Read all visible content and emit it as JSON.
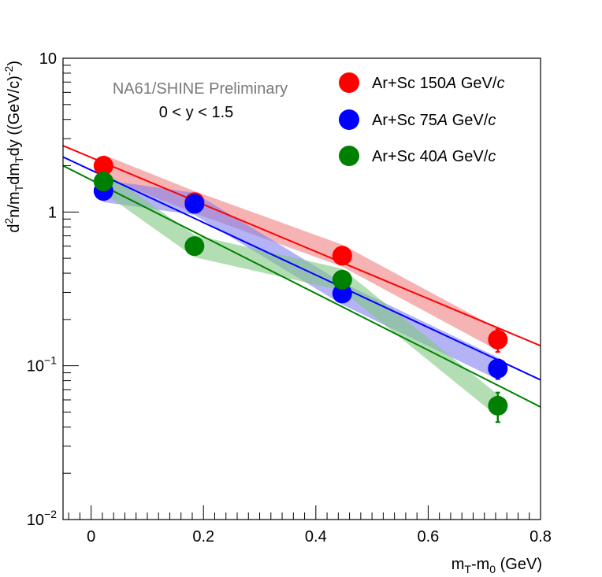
{
  "chart_data": {
    "type": "scatter",
    "xlabel_main": "m",
    "xlabel_sub1": "T",
    "xlabel_mid": "-m",
    "xlabel_sub2": "0",
    "xlabel_tail": " (GeV)",
    "ylabel_parts": {
      "a": "d",
      "a_sup": "2",
      "b": "n/m",
      "b_sub": "T",
      "c": "dm",
      "c_sub": "T",
      "d": "dy ((GeV/c)",
      "d_sup": "-2",
      "e": ")"
    },
    "x_range": [
      -0.05,
      0.8
    ],
    "y_range": [
      0.01,
      10
    ],
    "y_scale": "log",
    "x_ticks": [
      0,
      0.2,
      0.4,
      0.6,
      0.8
    ],
    "x_tick_labels": [
      "0",
      "0.2",
      "0.4",
      "0.6",
      "0.8"
    ],
    "y_major_ticks": [
      {
        "value": 0.01,
        "base": "10",
        "exp": "−2"
      },
      {
        "value": 0.1,
        "base": "10",
        "exp": "−1"
      },
      {
        "value": 1,
        "base": "1",
        "exp": ""
      },
      {
        "value": 10,
        "base": "10",
        "exp": ""
      }
    ],
    "annotations": [
      "NA61/SHINE Preliminary",
      "0 < y < 1.5"
    ],
    "legend_position": "top-right",
    "series": [
      {
        "name_prefix": "Ar+Sc 150",
        "name_italic": "A",
        "name_mid": " GeV/",
        "name_italic2": "c",
        "color": "#ff0000",
        "band_color": "#f08080",
        "x": [
          0.022,
          0.184,
          0.447,
          0.724
        ],
        "y": [
          2.0,
          1.16,
          0.52,
          0.148
        ],
        "yerr_low": [
          0.15,
          0.07,
          0.03,
          0.025
        ],
        "yerr_high": [
          0.15,
          0.07,
          0.03,
          0.025
        ],
        "band_half_width_factor": 1.18,
        "fit": {
          "x0": -0.05,
          "y0": 2.7,
          "x1": 0.8,
          "y1": 0.135
        }
      },
      {
        "name_prefix": "Ar+Sc 75",
        "name_italic": "A",
        "name_mid": " GeV/",
        "name_italic2": "c",
        "color": "#0000ff",
        "band_color": "#8080f0",
        "x": [
          0.022,
          0.184,
          0.447,
          0.724
        ],
        "y": [
          1.37,
          1.13,
          0.295,
          0.096
        ],
        "yerr_low": [
          0.12,
          0.06,
          0.02,
          0.014
        ],
        "yerr_high": [
          0.12,
          0.06,
          0.02,
          0.014
        ],
        "band_half_width_factor": 1.18,
        "fit": {
          "x0": -0.05,
          "y0": 2.28,
          "x1": 0.8,
          "y1": 0.081
        }
      },
      {
        "name_prefix": "Ar+Sc 40",
        "name_italic": "A",
        "name_mid": " GeV/",
        "name_italic2": "c",
        "color": "#008000",
        "band_color": "#80c880",
        "x": [
          0.022,
          0.184,
          0.447,
          0.724
        ],
        "y": [
          1.58,
          0.6,
          0.363,
          0.055
        ],
        "yerr_low": [
          0.13,
          0.07,
          0.03,
          0.012
        ],
        "yerr_high": [
          0.13,
          0.07,
          0.03,
          0.012
        ],
        "band_half_width_factor": 1.18,
        "fit": {
          "x0": -0.05,
          "y0": 2.0,
          "x1": 0.8,
          "y1": 0.054
        }
      }
    ]
  }
}
